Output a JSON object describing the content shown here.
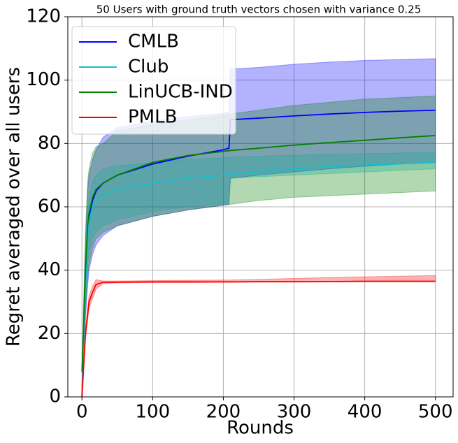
{
  "chart_data": {
    "type": "line",
    "title": "50 Users with ground truth vectors chosen with variance 0.25",
    "x_label": "Rounds",
    "y_label": "Regret averaged over all users",
    "x": [
      0,
      2,
      5,
      8,
      10,
      15,
      20,
      30,
      50,
      100,
      150,
      200,
      208,
      210,
      250,
      300,
      350,
      400,
      450,
      500
    ],
    "xlim": [
      -20,
      525
    ],
    "xticks": [
      0,
      100,
      200,
      300,
      400,
      500
    ],
    "ylim": [
      0,
      120
    ],
    "yticks": [
      0,
      20,
      40,
      60,
      80,
      100,
      120
    ],
    "grid": true,
    "legend": "upper left",
    "series": [
      {
        "name": "CMLB",
        "color": "#0000ff",
        "values": [
          0,
          15,
          38,
          52,
          57,
          62,
          65,
          67.5,
          70,
          73.5,
          76,
          78,
          78.5,
          87.5,
          88,
          88.7,
          89.3,
          89.8,
          90.2,
          90.5
        ],
        "lower": [
          0,
          8,
          25,
          35,
          40,
          45,
          48,
          51,
          54,
          57,
          59,
          60.5,
          60.8,
          69,
          70,
          71,
          72,
          72.8,
          73.5,
          74
        ],
        "upper": [
          0,
          22,
          50,
          65,
          70,
          75,
          78,
          82,
          85,
          87,
          88.5,
          89.5,
          90,
          103.5,
          104,
          105,
          105.7,
          106.2,
          106.5,
          106.8
        ]
      },
      {
        "name": "Club",
        "color": "#17becf",
        "values": [
          0,
          12,
          35,
          50,
          55,
          60,
          62,
          64,
          65.5,
          67.5,
          69,
          70,
          70.2,
          70.3,
          71,
          72,
          72.7,
          73.2,
          73.6,
          74
        ],
        "lower": [
          0,
          8,
          28,
          42,
          46,
          50,
          52,
          54,
          56,
          58.5,
          60,
          61,
          61.2,
          69,
          69.5,
          70,
          70.5,
          71,
          71.5,
          72
        ],
        "upper": [
          0,
          16,
          42,
          58,
          63,
          68,
          70,
          72,
          73,
          74,
          75,
          75.5,
          75.6,
          75.7,
          76,
          76.3,
          76.6,
          76.8,
          77,
          77.2
        ]
      },
      {
        "name": "LinUCB-IND",
        "color": "#007f00",
        "values": [
          8,
          20,
          40,
          54,
          58,
          63,
          65.5,
          67.5,
          70,
          74,
          76.2,
          77.5,
          77.7,
          77.8,
          78.5,
          79.5,
          80.3,
          81,
          81.8,
          82.5
        ],
        "lower": [
          8,
          12,
          28,
          38,
          42,
          47,
          50,
          52,
          54,
          57,
          59,
          60.5,
          60.7,
          60.8,
          62,
          63,
          63.5,
          64,
          64.5,
          65
        ],
        "upper": [
          8,
          28,
          52,
          68,
          72,
          77,
          79,
          80,
          84,
          86,
          87.5,
          89,
          89.2,
          89.3,
          90.5,
          92,
          93,
          94,
          94.5,
          95
        ]
      },
      {
        "name": "PMLB",
        "color": "#ff0000",
        "values": [
          0,
          8,
          20,
          26,
          30,
          33,
          35.5,
          36.2,
          36.2,
          36.3,
          36.3,
          36.3,
          36.3,
          36.3,
          36.4,
          36.4,
          36.4,
          36.5,
          36.5,
          36.5
        ],
        "lower": [
          0,
          7,
          18,
          24,
          28,
          31,
          34,
          35.8,
          36,
          36.1,
          36.1,
          36.2,
          36.2,
          36.2,
          36.2,
          36.2,
          36.3,
          36.3,
          36.3,
          36.3
        ],
        "upper": [
          0,
          9,
          22,
          28,
          32,
          35,
          37,
          36.6,
          36.6,
          36.7,
          36.8,
          36.9,
          36.9,
          36.9,
          37.1,
          37.4,
          37.7,
          37.9,
          38.1,
          38.3
        ]
      }
    ]
  }
}
